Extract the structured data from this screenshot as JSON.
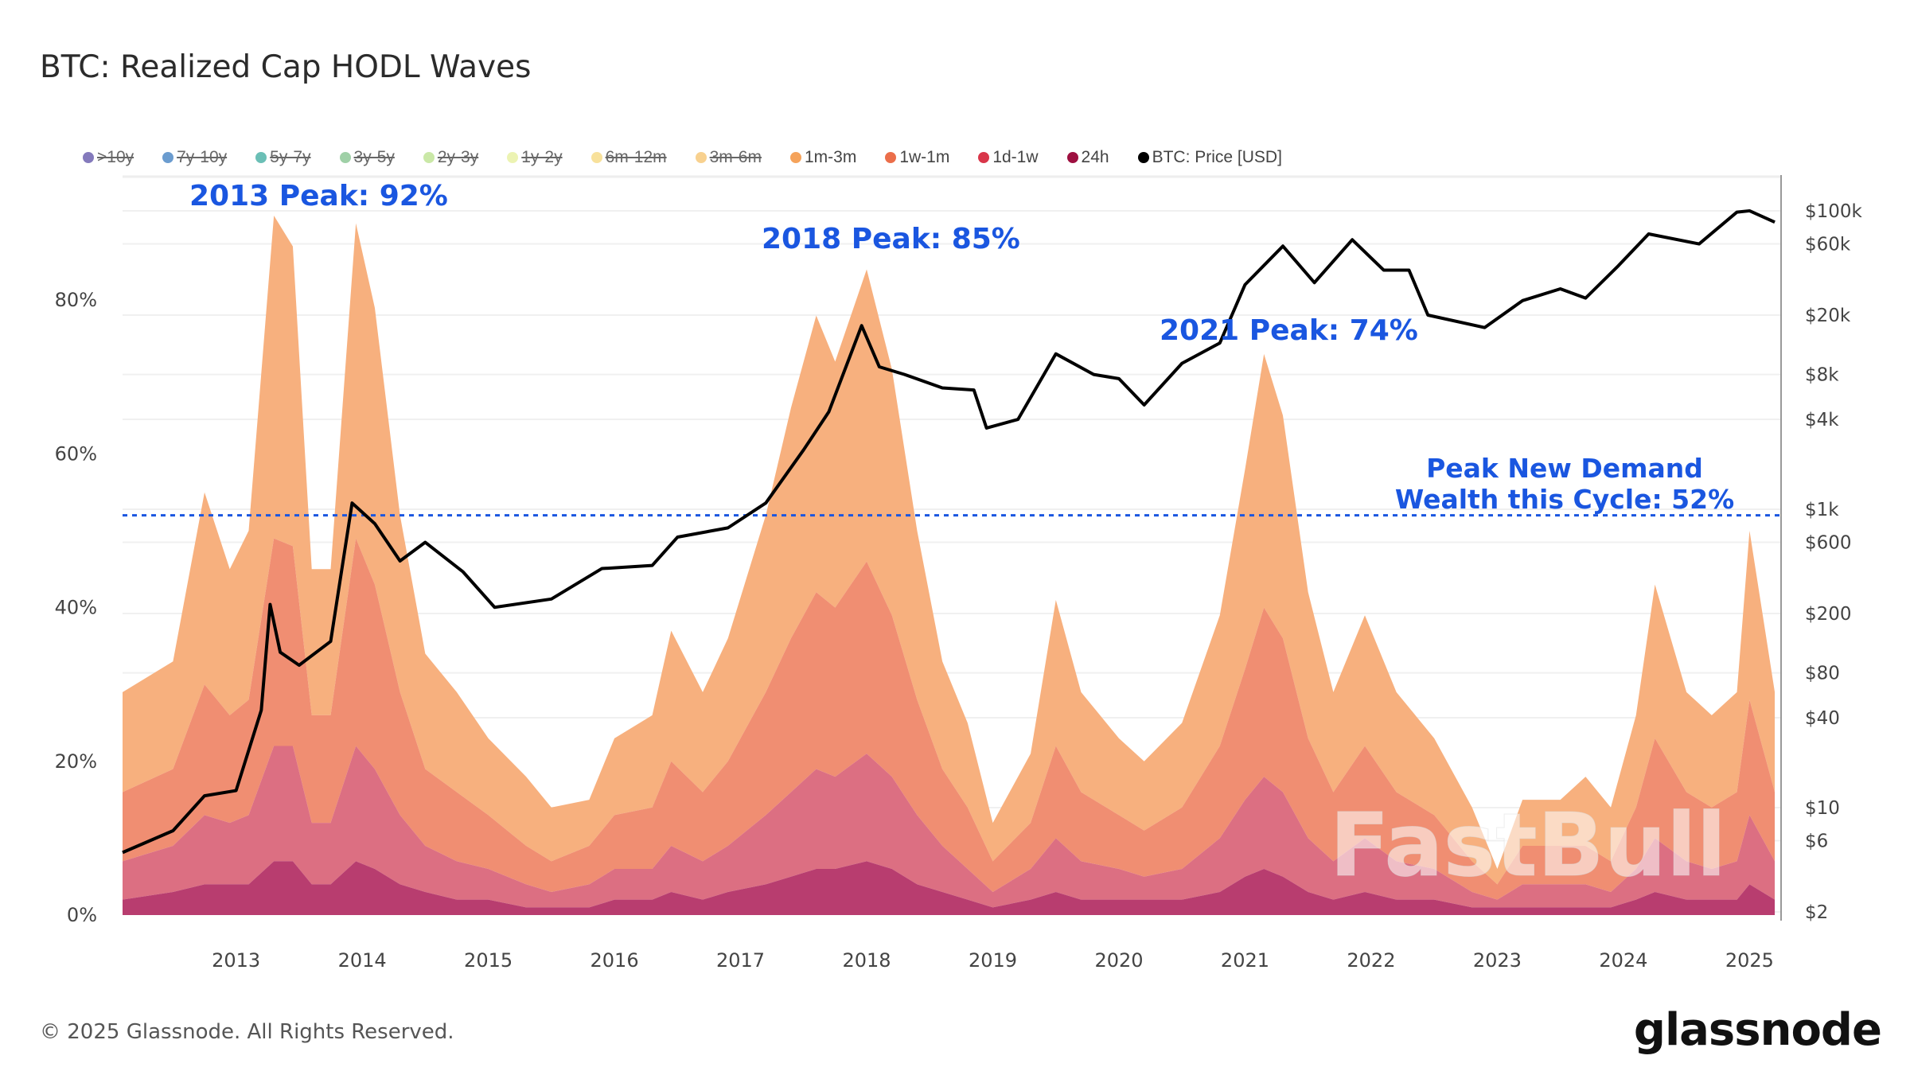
{
  "title": "BTC: Realized Cap HODL Waves",
  "copyright": "© 2025 Glassnode. All Rights Reserved.",
  "logo": "glassnode",
  "watermark": "FastBull",
  "legend": [
    {
      "label": ">10y",
      "color": "#5b4ea6",
      "hidden": true
    },
    {
      "label": "7y-10y",
      "color": "#3a7bbf",
      "hidden": true
    },
    {
      "label": "5y-7y",
      "color": "#3aaa9e",
      "hidden": true
    },
    {
      "label": "3y-5y",
      "color": "#7fc08a",
      "hidden": true
    },
    {
      "label": "2y-3y",
      "color": "#b8e08a",
      "hidden": true
    },
    {
      "label": "1y-2y",
      "color": "#e6ef9a",
      "hidden": true
    },
    {
      "label": "6m-12m",
      "color": "#f6d77a",
      "hidden": true
    },
    {
      "label": "3m-6m",
      "color": "#f6c26a",
      "hidden": true
    },
    {
      "label": "1m-3m",
      "color": "#f5a35b",
      "hidden": false
    },
    {
      "label": "1w-1m",
      "color": "#eb6e4a",
      "hidden": false
    },
    {
      "label": "1d-1w",
      "color": "#d9364a",
      "hidden": false
    },
    {
      "label": "24h",
      "color": "#9e1040",
      "hidden": false
    },
    {
      "label": "BTC: Price [USD]",
      "color": "#000000",
      "hidden": false
    }
  ],
  "annotations": {
    "peak_2013": "2013 Peak: 92%",
    "peak_2018": "2018 Peak: 85%",
    "peak_2021": "2021 Peak: 74%",
    "cycle_line1": "Peak New Demand",
    "cycle_line2": "Wealth this Cycle: 52%",
    "cycle_level": 52,
    "color": "#1a56e0"
  },
  "chart_data": {
    "type": "area",
    "stacked": true,
    "xlim": [
      2012.1,
      2025.25
    ],
    "ylim": [
      0,
      100
    ],
    "y_right_scale": "log",
    "y_right_lim": [
      2,
      100000
    ],
    "grid": true,
    "legend_position": "top",
    "x_ticks": [
      "2013",
      "2014",
      "2015",
      "2016",
      "2017",
      "2018",
      "2019",
      "2020",
      "2021",
      "2022",
      "2023",
      "2024",
      "2025"
    ],
    "y_ticks": [
      "0%",
      "20%",
      "40%",
      "60%",
      "80%"
    ],
    "y_right_ticks": [
      "$2",
      "$6",
      "$10",
      "$40",
      "$80",
      "$200",
      "$600",
      "$1k",
      "$4k",
      "$8k",
      "$20k",
      "$60k",
      "$100k"
    ],
    "x": [
      2012.1,
      2012.5,
      2012.75,
      2012.95,
      2013.1,
      2013.3,
      2013.45,
      2013.6,
      2013.75,
      2013.95,
      2014.1,
      2014.3,
      2014.5,
      2014.75,
      2015.0,
      2015.3,
      2015.5,
      2015.8,
      2016.0,
      2016.3,
      2016.45,
      2016.7,
      2016.9,
      2017.2,
      2017.4,
      2017.6,
      2017.75,
      2018.0,
      2018.2,
      2018.4,
      2018.6,
      2018.8,
      2019.0,
      2019.3,
      2019.5,
      2019.7,
      2020.0,
      2020.2,
      2020.5,
      2020.8,
      2021.0,
      2021.15,
      2021.3,
      2021.5,
      2021.7,
      2021.95,
      2022.2,
      2022.5,
      2022.8,
      2023.0,
      2023.2,
      2023.5,
      2023.7,
      2023.9,
      2024.1,
      2024.25,
      2024.5,
      2024.7,
      2024.9,
      2025.0,
      2025.2
    ],
    "series": [
      {
        "name": "24h",
        "color": "#b83d6f",
        "values": [
          2,
          3,
          4,
          4,
          4,
          7,
          7,
          4,
          4,
          7,
          6,
          4,
          3,
          2,
          2,
          1,
          1,
          1,
          2,
          2,
          3,
          2,
          3,
          4,
          5,
          6,
          6,
          7,
          6,
          4,
          3,
          2,
          1,
          2,
          3,
          2,
          2,
          2,
          2,
          3,
          5,
          6,
          5,
          3,
          2,
          3,
          2,
          2,
          1,
          1,
          1,
          1,
          1,
          1,
          2,
          3,
          2,
          2,
          2,
          4,
          2
        ]
      },
      {
        "name": "1d-1w",
        "color": "#dc6f82",
        "values": [
          5,
          6,
          9,
          8,
          9,
          15,
          15,
          8,
          8,
          15,
          13,
          9,
          6,
          5,
          4,
          3,
          2,
          3,
          4,
          4,
          6,
          5,
          6,
          9,
          11,
          13,
          12,
          14,
          12,
          9,
          6,
          4,
          2,
          4,
          7,
          5,
          4,
          3,
          4,
          7,
          10,
          12,
          11,
          7,
          5,
          7,
          5,
          4,
          2,
          1,
          3,
          3,
          3,
          2,
          4,
          7,
          5,
          4,
          5,
          9,
          5
        ]
      },
      {
        "name": "1w-1m",
        "color": "#f08e72",
        "values": [
          9,
          10,
          17,
          14,
          15,
          27,
          26,
          14,
          14,
          27,
          24,
          16,
          10,
          9,
          7,
          5,
          4,
          5,
          7,
          8,
          11,
          9,
          11,
          16,
          20,
          23,
          22,
          25,
          21,
          15,
          10,
          8,
          4,
          6,
          12,
          9,
          7,
          6,
          8,
          12,
          17,
          22,
          20,
          13,
          9,
          12,
          9,
          7,
          4,
          2,
          5,
          5,
          5,
          4,
          8,
          13,
          9,
          8,
          9,
          15,
          9
        ]
      },
      {
        "name": "1m-3m",
        "color": "#f7b07e",
        "values": [
          13,
          14,
          25,
          19,
          22,
          42,
          39,
          19,
          19,
          41,
          36,
          23,
          15,
          13,
          10,
          9,
          7,
          6,
          10,
          12,
          17,
          13,
          16,
          23,
          30,
          36,
          32,
          38,
          32,
          22,
          14,
          11,
          5,
          9,
          19,
          13,
          10,
          9,
          11,
          17,
          26,
          33,
          29,
          19,
          13,
          17,
          13,
          10,
          7,
          2,
          6,
          6,
          9,
          7,
          12,
          20,
          13,
          12,
          13,
          22,
          13
        ]
      }
    ],
    "price": {
      "name": "BTC: Price [USD]",
      "x": [
        2012.1,
        2012.5,
        2012.75,
        2013.0,
        2013.2,
        2013.27,
        2013.35,
        2013.5,
        2013.75,
        2013.92,
        2014.1,
        2014.3,
        2014.5,
        2014.8,
        2015.05,
        2015.5,
        2015.9,
        2016.3,
        2016.5,
        2016.9,
        2017.2,
        2017.5,
        2017.7,
        2017.96,
        2018.1,
        2018.3,
        2018.6,
        2018.85,
        2018.95,
        2019.2,
        2019.5,
        2019.8,
        2020.0,
        2020.2,
        2020.5,
        2020.8,
        2021.0,
        2021.3,
        2021.55,
        2021.85,
        2022.1,
        2022.3,
        2022.45,
        2022.9,
        2023.2,
        2023.5,
        2023.7,
        2023.95,
        2024.2,
        2024.6,
        2024.9,
        2025.0,
        2025.2
      ],
      "values": [
        5,
        7,
        12,
        13,
        45,
        230,
        110,
        90,
        130,
        1100,
        800,
        450,
        600,
        380,
        220,
        250,
        400,
        420,
        650,
        750,
        1100,
        2500,
        4500,
        17000,
        9000,
        8000,
        6500,
        6300,
        3500,
        4000,
        11000,
        8000,
        7500,
        5000,
        9500,
        13000,
        32000,
        58000,
        33000,
        64000,
        40000,
        40000,
        20000,
        16500,
        25000,
        30000,
        26000,
        42000,
        70000,
        60000,
        98000,
        100000,
        84000
      ]
    }
  }
}
